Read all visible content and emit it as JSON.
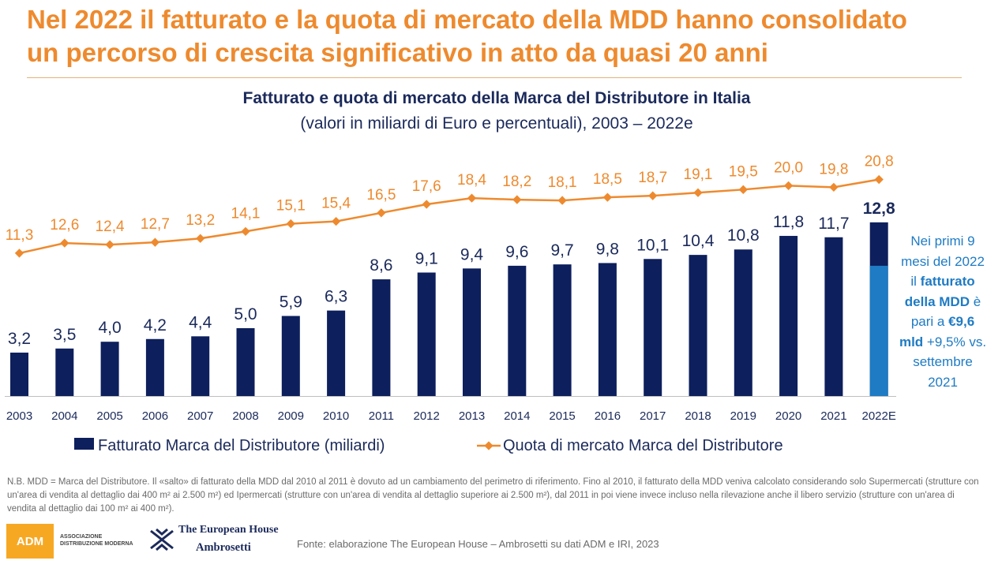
{
  "headline": {
    "line1": "Nel 2022 il fatturato e la quota di mercato della MDD hanno consolidato",
    "line2": "un percorso di crescita significativo in atto da quasi 20 anni"
  },
  "chart_data": {
    "type": "bar",
    "title": "Fatturato e quota di mercato della Marca del Distributore in Italia",
    "subtitle": "(valori in miliardi di Euro e percentuali), 2003 – 2022e",
    "categories": [
      "2003",
      "2004",
      "2005",
      "2006",
      "2007",
      "2008",
      "2009",
      "2010",
      "2011",
      "2012",
      "2013",
      "2014",
      "2015",
      "2016",
      "2017",
      "2018",
      "2019",
      "2020",
      "2021",
      "2022E"
    ],
    "series": [
      {
        "name": "Fatturato Marca del Distributore (miliardi)",
        "type": "bar",
        "values": [
          3.2,
          3.5,
          4.0,
          4.2,
          4.4,
          5.0,
          5.9,
          6.3,
          8.6,
          9.1,
          9.4,
          9.6,
          9.7,
          9.8,
          10.1,
          10.4,
          10.8,
          11.8,
          11.7,
          12.8
        ],
        "labels": [
          "3,2",
          "3,5",
          "4,0",
          "4,2",
          "4,4",
          "5,0",
          "5,9",
          "6,3",
          "8,6",
          "9,1",
          "9,4",
          "9,6",
          "9,7",
          "9,8",
          "10,1",
          "10,4",
          "10,8",
          "11,8",
          "11,7",
          "12,8"
        ],
        "color": "#0D1F5C",
        "partial_last": {
          "value": 9.6,
          "color": "#1E7BC4"
        }
      },
      {
        "name": "Quota di mercato Marca del Distributore",
        "type": "line",
        "values": [
          11.3,
          12.6,
          12.4,
          12.7,
          13.2,
          14.1,
          15.1,
          15.4,
          16.5,
          17.6,
          18.4,
          18.2,
          18.1,
          18.5,
          18.7,
          19.1,
          19.5,
          20.0,
          19.8,
          20.8
        ],
        "labels": [
          "11,3",
          "12,6",
          "12,4",
          "12,7",
          "13,2",
          "14,1",
          "15,1",
          "15,4",
          "16,5",
          "17,6",
          "18,4",
          "18,2",
          "18,1",
          "18,5",
          "18,7",
          "19,1",
          "19,5",
          "20,0",
          "19,8",
          "20,8"
        ],
        "color": "#EE8A2E"
      }
    ],
    "legend_position": "bottom",
    "grid": false
  },
  "side_note": {
    "part1": "Nei primi 9 mesi del 2022 il",
    "bold1": "fatturato della MDD",
    "part2": "è pari a",
    "bold2": "€9,6 mld",
    "part3": "+9,5% vs. settembre 2021"
  },
  "footnote": "N.B. MDD = Marca del Distributore. Il «salto» di fatturato della MDD dal 2010 al 2011 è dovuto ad un cambiamento del perimetro di riferimento. Fino al 2010, il fatturato della MDD veniva calcolato considerando solo Supermercati (strutture con un'area di vendita al dettaglio dai 400 m² ai 2.500 m²) ed Ipermercati (strutture con un'area di vendita al dettaglio superiore ai 2.500 m²), dal 2011 in poi viene invece incluso nella rilevazione anche il libero servizio (strutture con un'area di vendita al dettaglio dai 100 m² ai 400 m²).",
  "logos": {
    "adm": "ADM",
    "adm_text": "ASSOCIAZIONE DISTRIBUZIONE MODERNA",
    "teha_line1": "The European House",
    "teha_line2": "Ambrosetti"
  },
  "source": "Fonte: elaborazione The European House – Ambrosetti su dati ADM e IRI, 2023"
}
